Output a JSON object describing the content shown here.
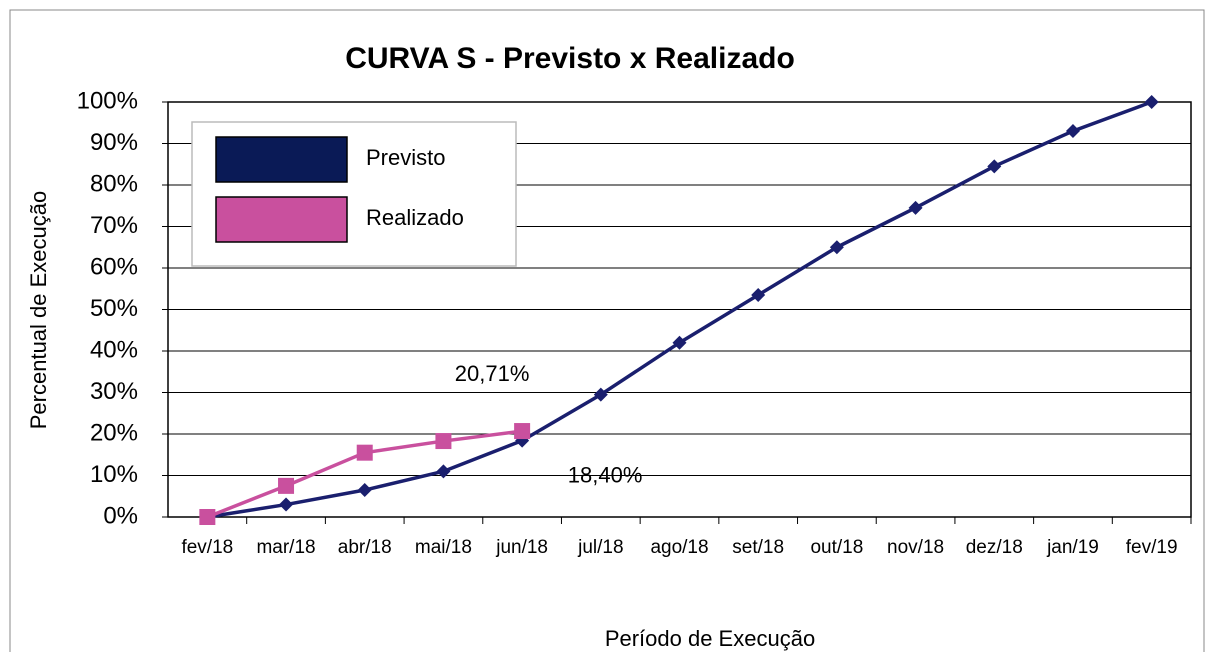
{
  "chart_data": {
    "type": "line",
    "title": "CURVA S - Previsto x Realizado",
    "x_label": "Período de Execução",
    "y_label": "Percentual  de Execução",
    "categories": [
      "fev/18",
      "mar/18",
      "abr/18",
      "mai/18",
      "jun/18",
      "jul/18",
      "ago/18",
      "set/18",
      "out/18",
      "nov/18",
      "dez/18",
      "jan/19",
      "fev/19"
    ],
    "series": [
      {
        "name": "Previsto",
        "color": "#1a1f6e",
        "marker": "diamond",
        "values": [
          0,
          3,
          6.5,
          11,
          18.4,
          29.5,
          42,
          53.5,
          65,
          74.5,
          84.5,
          93,
          100
        ],
        "value_labels": [
          null,
          null,
          null,
          null,
          "18,40%",
          null,
          null,
          null,
          null,
          null,
          null,
          null,
          null
        ]
      },
      {
        "name": "Realizado",
        "color": "#c9509e",
        "marker": "square",
        "values": [
          0,
          7.5,
          15.5,
          18.3,
          20.71,
          null,
          null,
          null,
          null,
          null,
          null,
          null,
          null
        ],
        "value_labels": [
          null,
          null,
          null,
          null,
          "20,71%",
          null,
          null,
          null,
          null,
          null,
          null,
          null,
          null
        ]
      }
    ],
    "ylim": [
      0,
      100
    ],
    "yticks": [
      {
        "value": 0,
        "label": "0%"
      },
      {
        "value": 10,
        "label": "10%"
      },
      {
        "value": 20,
        "label": "20%"
      },
      {
        "value": 30,
        "label": "30%"
      },
      {
        "value": 40,
        "label": "40%"
      },
      {
        "value": 50,
        "label": "50%"
      },
      {
        "value": 60,
        "label": "60%"
      },
      {
        "value": 70,
        "label": "70%"
      },
      {
        "value": 80,
        "label": "80%"
      },
      {
        "value": 90,
        "label": "90%"
      },
      {
        "value": 100,
        "label": "100%"
      }
    ],
    "grid": true,
    "legend": "top-left"
  }
}
